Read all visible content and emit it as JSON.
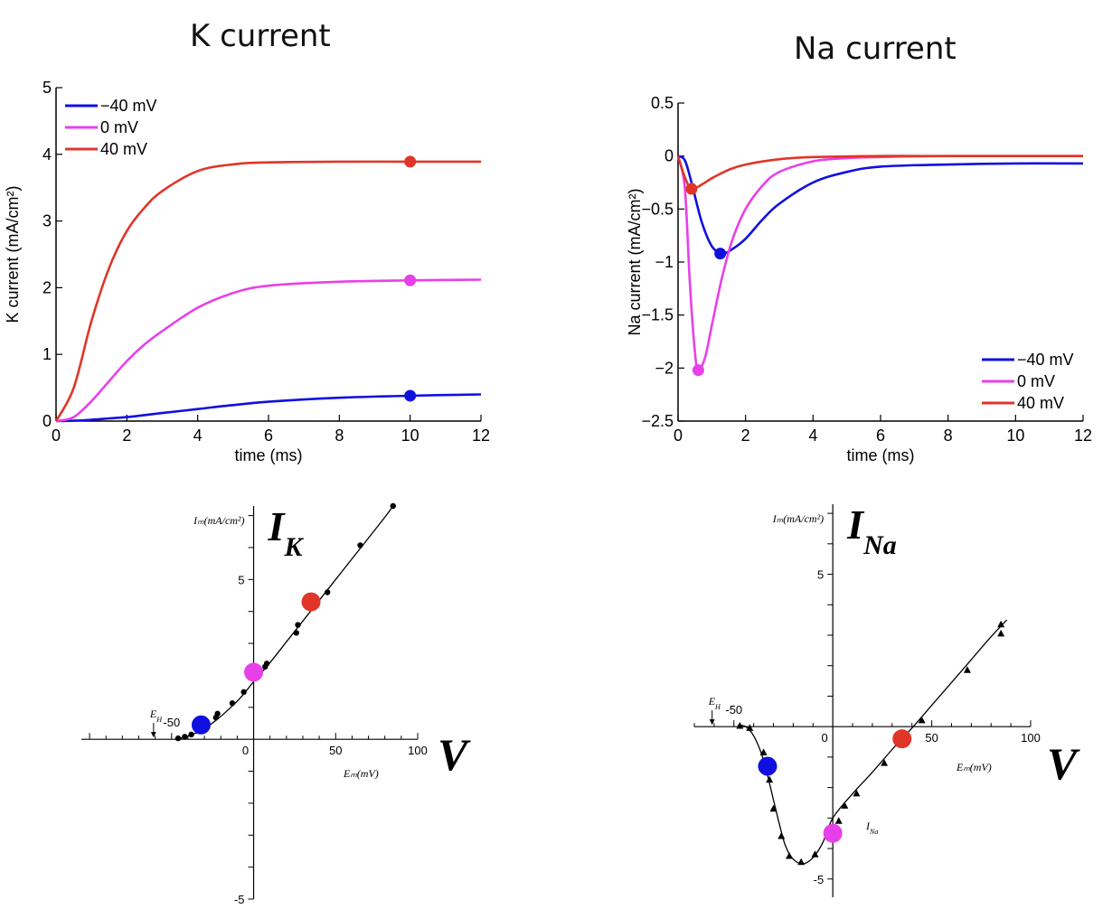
{
  "titles": {
    "k": "K current",
    "na": "Na current"
  },
  "legend_labels": [
    "−40 mV",
    "0   mV",
    "40  mV"
  ],
  "series_colors": {
    "m40": "#1010e0",
    "z0": "#e840e8",
    "p40": "#e03528"
  },
  "chart_data": [
    {
      "type": "line",
      "title": "K current",
      "xlabel": "time (ms)",
      "ylabel": "K current (mA/cm²)",
      "xlim": [
        0,
        12
      ],
      "ylim": [
        0,
        5
      ],
      "xticks": [
        0,
        2,
        4,
        6,
        8,
        10,
        12
      ],
      "yticks": [
        0,
        1,
        2,
        3,
        4,
        5
      ],
      "xtick_labels": [
        "0",
        "2",
        "4",
        "6",
        "8",
        "10",
        "12"
      ],
      "ytick_labels": [
        "0",
        "1",
        "2",
        "3",
        "4",
        "5"
      ],
      "legend_position": "top-left",
      "x": [
        0,
        0.5,
        1,
        1.5,
        2,
        2.5,
        3,
        4,
        5,
        6,
        8,
        10,
        12
      ],
      "series": [
        {
          "name": "−40 mV",
          "color_key": "m40",
          "values": [
            0,
            0.005,
            0.02,
            0.04,
            0.06,
            0.09,
            0.12,
            0.18,
            0.24,
            0.29,
            0.35,
            0.38,
            0.4
          ]
        },
        {
          "name": "0   mV",
          "color_key": "z0",
          "values": [
            0,
            0.06,
            0.3,
            0.6,
            0.9,
            1.15,
            1.35,
            1.7,
            1.92,
            2.03,
            2.09,
            2.11,
            2.12
          ]
        },
        {
          "name": "40  mV",
          "color_key": "p40",
          "values": [
            0,
            0.5,
            1.5,
            2.3,
            2.85,
            3.2,
            3.45,
            3.75,
            3.85,
            3.88,
            3.89,
            3.89,
            3.89
          ]
        }
      ],
      "markers": [
        {
          "x": 10,
          "y": 0.38,
          "color_key": "m40"
        },
        {
          "x": 10,
          "y": 2.11,
          "color_key": "z0"
        },
        {
          "x": 10,
          "y": 3.89,
          "color_key": "p40"
        }
      ]
    },
    {
      "type": "line",
      "title": "Na current",
      "xlabel": "time (ms)",
      "ylabel": "Na current (mA/cm²)",
      "xlim": [
        0,
        12
      ],
      "ylim": [
        -2.5,
        0.5
      ],
      "xticks": [
        0,
        2,
        4,
        6,
        8,
        10,
        12
      ],
      "yticks": [
        0.5,
        0,
        -0.5,
        -1,
        -1.5,
        -2,
        -2.5
      ],
      "xtick_labels": [
        "0",
        "2",
        "4",
        "6",
        "8",
        "10",
        "12"
      ],
      "ytick_labels": [
        "0.5",
        "0",
        "−0.5",
        "−1",
        "−1.5",
        "−2",
        "−2.5"
      ],
      "legend_position": "bottom-right",
      "series": [
        {
          "name": "−40 mV",
          "color_key": "m40",
          "x": [
            0,
            0.2,
            0.4,
            0.7,
            1.0,
            1.3,
            1.6,
            2.0,
            2.5,
            3.0,
            4.0,
            5.0,
            6.0,
            8.0,
            10.0,
            12.0
          ],
          "values": [
            0,
            -0.04,
            -0.25,
            -0.62,
            -0.85,
            -0.92,
            -0.88,
            -0.78,
            -0.6,
            -0.45,
            -0.25,
            -0.15,
            -0.1,
            -0.08,
            -0.07,
            -0.07
          ]
        },
        {
          "name": "0   mV",
          "color_key": "z0",
          "x": [
            0,
            0.2,
            0.35,
            0.5,
            0.6,
            0.8,
            1.0,
            1.3,
            1.6,
            2.0,
            2.5,
            3.0,
            4.0,
            5.0,
            6.0,
            8.0,
            12.0
          ],
          "values": [
            0,
            -0.3,
            -1.2,
            -1.85,
            -2.02,
            -1.9,
            -1.6,
            -1.15,
            -0.8,
            -0.5,
            -0.28,
            -0.15,
            -0.05,
            -0.02,
            -0.01,
            0,
            0
          ]
        },
        {
          "name": "40  mV",
          "color_key": "p40",
          "x": [
            0,
            0.2,
            0.4,
            0.7,
            1.0,
            1.5,
            2.0,
            3.0,
            4.0,
            6.0,
            8.0,
            12.0
          ],
          "values": [
            0,
            -0.2,
            -0.31,
            -0.27,
            -0.21,
            -0.13,
            -0.08,
            -0.03,
            -0.01,
            0,
            0,
            0
          ]
        }
      ],
      "markers": [
        {
          "x": 1.25,
          "y": -0.92,
          "color_key": "m40"
        },
        {
          "x": 0.6,
          "y": -2.02,
          "color_key": "z0"
        },
        {
          "x": 0.4,
          "y": -0.31,
          "color_key": "p40"
        }
      ]
    },
    {
      "type": "scatter",
      "title": "I",
      "title_sub": "K",
      "axis_y_label": "Iₘ(mA/cm²)",
      "axis_x_label": "Eₘ(mV)",
      "v_label": "V",
      "curve_label": "I",
      "curve_label_sub": "K",
      "eh_label": "E",
      "eh_label_sub": "H",
      "xlim": [
        -105,
        100
      ],
      "ylim": [
        -5,
        7.3
      ],
      "x_tick_labels": [
        {
          "x": -50,
          "text": "-50"
        },
        {
          "x": 0,
          "text": "0"
        },
        {
          "x": 50,
          "text": "50"
        },
        {
          "x": 100,
          "text": "100"
        }
      ],
      "y_tick_labels": [
        {
          "y": 5,
          "text": "5"
        },
        {
          "y": -5,
          "text": "-5"
        }
      ],
      "eh_x": -61,
      "curve": {
        "x": [
          -48,
          -40,
          -32,
          -24,
          -16,
          -8,
          0,
          10,
          20,
          30,
          40,
          50,
          60,
          70,
          80,
          85
        ],
        "y": [
          0,
          0.1,
          0.28,
          0.55,
          0.9,
          1.3,
          1.8,
          2.4,
          3.05,
          3.7,
          4.35,
          5.0,
          5.65,
          6.3,
          6.95,
          7.3
        ]
      },
      "points": {
        "x": [
          -46,
          -42,
          -38,
          -34,
          -29,
          -23,
          -22,
          -13,
          -6,
          7,
          8,
          26,
          27,
          45,
          65,
          85
        ],
        "y": [
          0.03,
          0.08,
          0.15,
          0.26,
          0.44,
          0.68,
          0.8,
          1.13,
          1.48,
          2.27,
          2.37,
          3.33,
          3.58,
          4.6,
          6.07,
          7.3
        ]
      },
      "markers": [
        {
          "x": -32,
          "y": 0.45,
          "color_key": "m40"
        },
        {
          "x": 0,
          "y": 2.1,
          "color_key": "z0"
        },
        {
          "x": 35,
          "y": 4.3,
          "color_key": "p40"
        }
      ]
    },
    {
      "type": "scatter",
      "title": "I",
      "title_sub": "Na",
      "axis_y_label": "Iₘ(mA/cm²)",
      "axis_x_label": "Eₘ(mV)",
      "v_label": "V",
      "curve_label": "I",
      "curve_label_sub": "Na",
      "eh_label": "E",
      "eh_label_sub": "H",
      "xlim": [
        -70,
        100
      ],
      "ylim": [
        -5.6,
        7.3
      ],
      "x_tick_labels": [
        {
          "x": -50,
          "text": "-50"
        },
        {
          "x": 0,
          "text": "0"
        },
        {
          "x": 50,
          "text": "50"
        },
        {
          "x": 100,
          "text": "100"
        }
      ],
      "y_tick_labels": [
        {
          "y": 5,
          "text": "5"
        },
        {
          "y": -5,
          "text": "-5"
        }
      ],
      "eh_x": -61,
      "curve": {
        "x": [
          -48,
          -44,
          -40,
          -36,
          -33,
          -30,
          -27,
          -24,
          -20,
          -15,
          -10,
          -5,
          0,
          10,
          20,
          30,
          40,
          50,
          60,
          70,
          80,
          88
        ],
        "y": [
          0.05,
          0,
          -0.3,
          -0.9,
          -1.6,
          -2.4,
          -3.2,
          -3.9,
          -4.35,
          -4.5,
          -4.3,
          -3.8,
          -3.0,
          -2.2,
          -1.5,
          -0.75,
          -0.05,
          0.7,
          1.45,
          2.2,
          2.95,
          3.5
        ]
      },
      "points": {
        "x": [
          -47,
          -42,
          -35,
          -32,
          -30,
          -26,
          -22,
          -16,
          -9,
          3,
          6,
          12,
          26,
          45,
          68,
          85,
          85
        ],
        "y": [
          0.02,
          -0.05,
          -0.85,
          -1.75,
          -2.7,
          -3.6,
          -4.25,
          -4.45,
          -4.2,
          -3.1,
          -2.6,
          -2.2,
          -1.2,
          0.2,
          1.85,
          3.35,
          3.05
        ]
      },
      "markers": [
        {
          "x": -33,
          "y": -1.3,
          "color_key": "m40"
        },
        {
          "x": 0,
          "y": -3.5,
          "color_key": "z0"
        },
        {
          "x": 35,
          "y": -0.4,
          "color_key": "p40"
        }
      ]
    }
  ]
}
